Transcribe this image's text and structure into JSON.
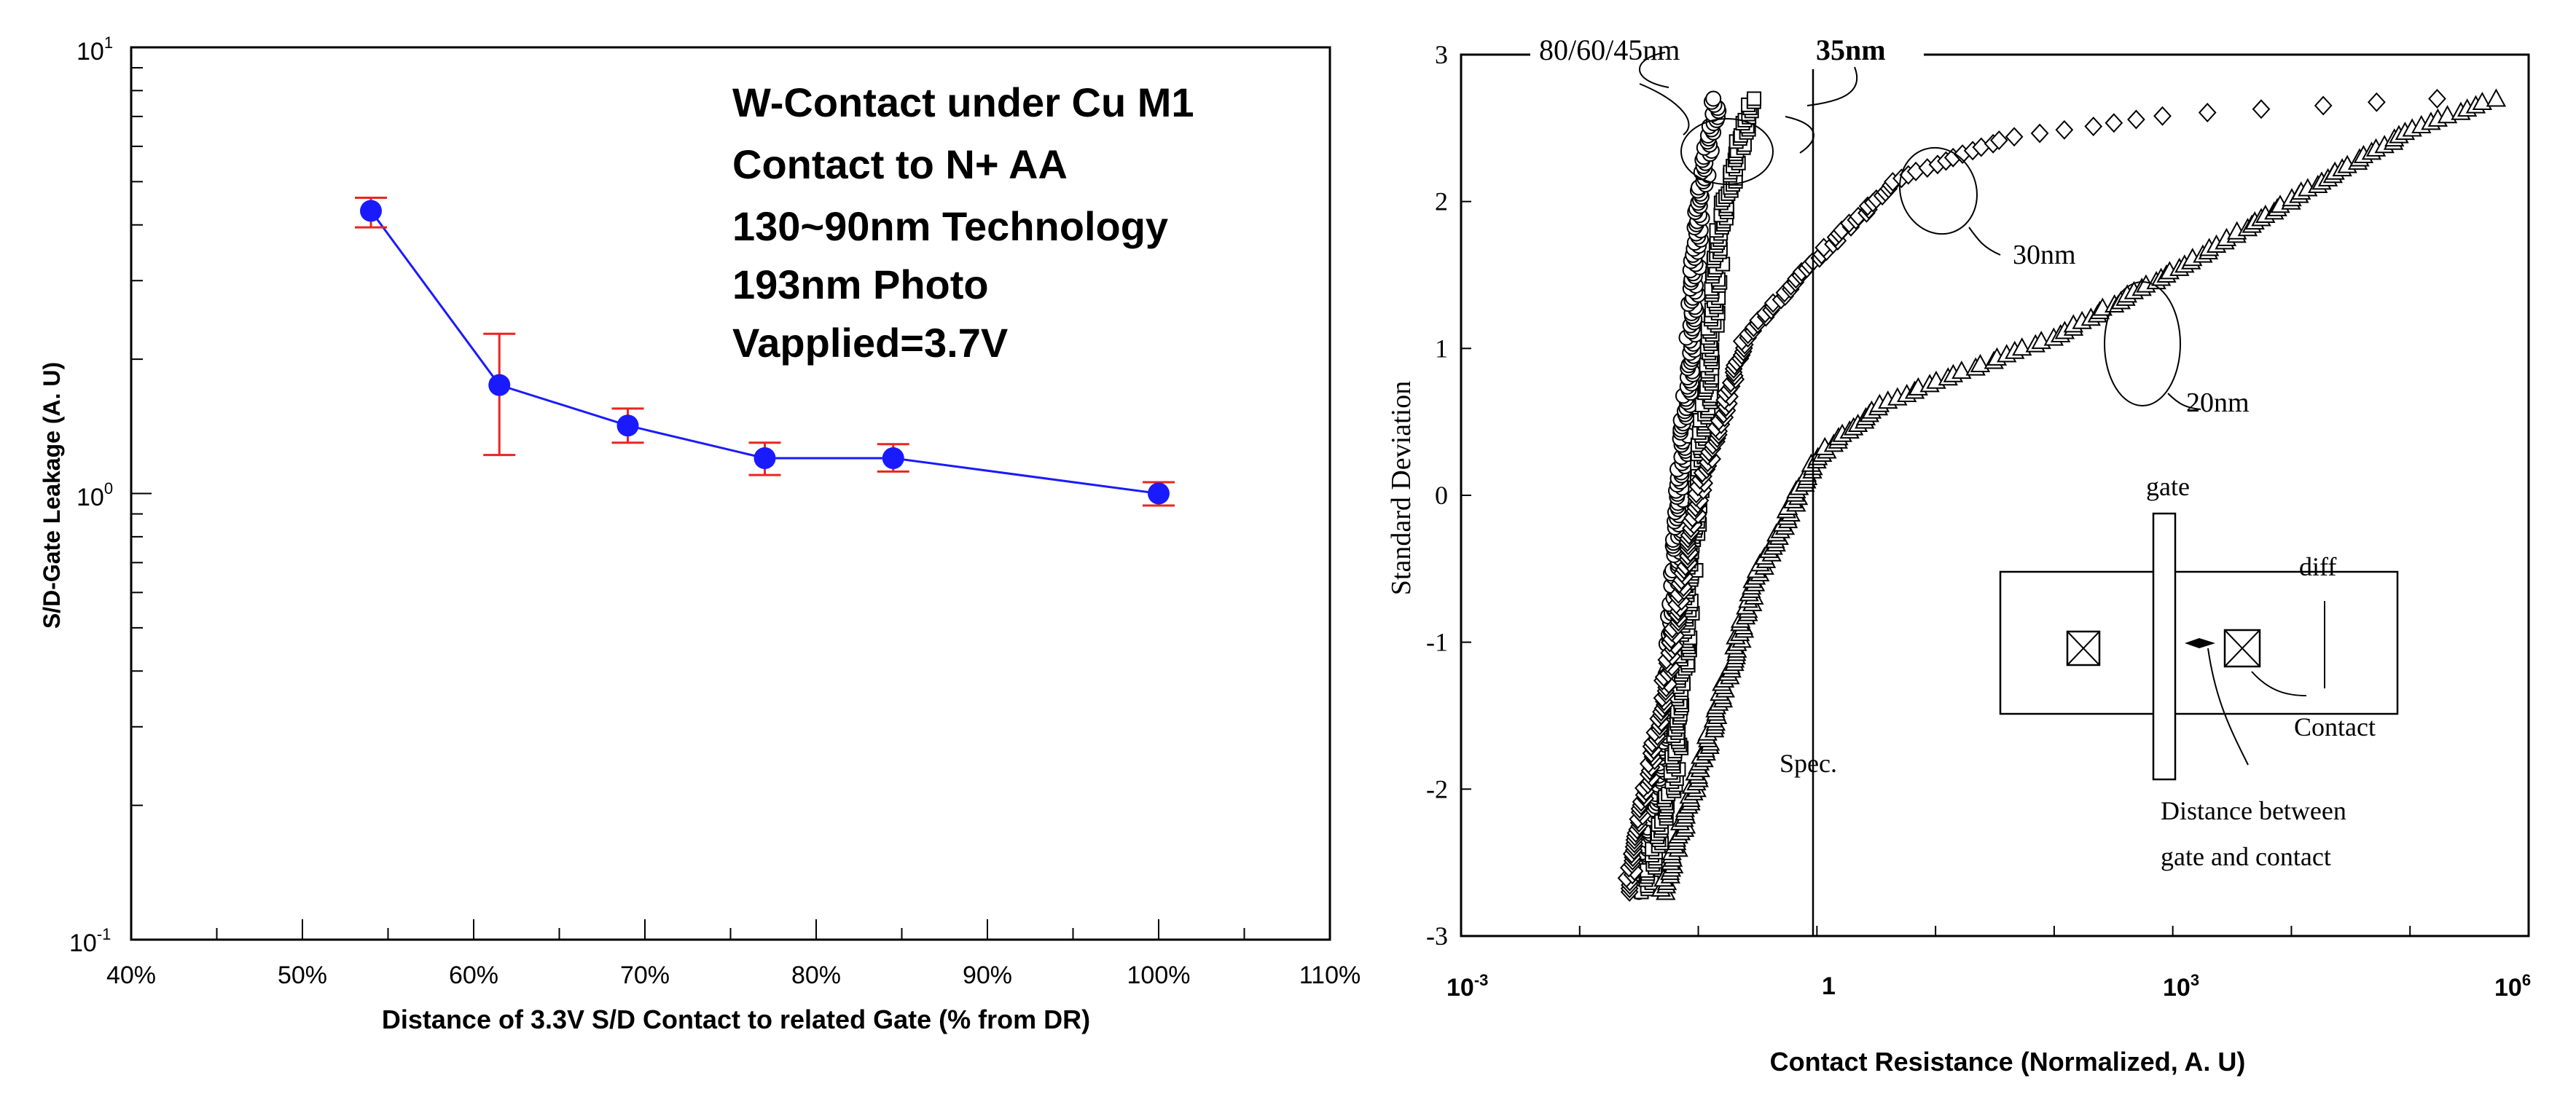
{
  "chart_data": [
    {
      "type": "line",
      "yscale": "log",
      "x_tick_labels": [
        "40%",
        "50%",
        "60%",
        "70%",
        "80%",
        "90%",
        "100%",
        "110%"
      ],
      "xlim": [
        40,
        110
      ],
      "y_tick_labels": {
        "base": "10",
        "top_exp": "1",
        "mid_exp": "0",
        "bottom_exp": "-1"
      },
      "ylim": [
        0.1,
        10
      ],
      "xlabel": "Distance of 3.3V S/D Contact to related Gate (% from DR)",
      "ylabel": "S/D-Gate Leakage (A. U)",
      "annotation_lines": [
        "W-Contact under Cu M1",
        "Contact to N+ AA",
        "130~90nm Technology",
        "193nm Photo",
        "Vapplied=3.7V"
      ],
      "series": [
        {
          "name": "leakage",
          "x": [
            54,
            61.5,
            69,
            77,
            84.5,
            100
          ],
          "y": [
            4.3,
            1.75,
            1.42,
            1.2,
            1.2,
            1.0
          ],
          "err_low": [
            3.95,
            1.22,
            1.3,
            1.1,
            1.12,
            0.94
          ],
          "err_high": [
            4.6,
            2.28,
            1.55,
            1.3,
            1.29,
            1.06
          ],
          "color": "#1a1aff",
          "error_color": "#e8261f"
        }
      ]
    },
    {
      "type": "scatter",
      "xscale": "log",
      "xlim_exp": [
        -3,
        6
      ],
      "x_tick_labels": {
        "base": "10",
        "left_exp": "-3",
        "mid_label": "1",
        "mid2_exp": "3",
        "right_exp": "6"
      },
      "ylim": [
        -3,
        3
      ],
      "y_tick_labels": [
        "3",
        "2",
        "1",
        "0",
        "-1",
        "-2",
        "-3"
      ],
      "xlabel": "Contact Resistance (Normalized, A. U)",
      "ylabel": "Standard Deviation",
      "spec_label": "Spec.",
      "spec_x": 1,
      "annotations": {
        "group_80_60_45": "80/60/45nm",
        "group_35": "35nm",
        "group_30": "30nm",
        "group_20": "20nm"
      },
      "inset_labels": {
        "gate": "gate",
        "diff": "diff",
        "contact": "Contact",
        "distance_line1": "Distance between",
        "distance_line2": "gate and contact"
      },
      "series": [
        {
          "name": "80/60/45nm",
          "marker": "circle",
          "log10_x_range": [
            -1.6,
            -0.65
          ]
        },
        {
          "name": "35nm",
          "marker": "square",
          "log10_x_range": [
            -1.5,
            -0.55
          ]
        },
        {
          "name": "30nm",
          "marker": "diamond",
          "log10_x_range": [
            -1.6,
            5.2
          ]
        },
        {
          "name": "20nm",
          "marker": "triangle",
          "log10_x_range": [
            -1.3,
            5.7
          ]
        }
      ]
    }
  ]
}
